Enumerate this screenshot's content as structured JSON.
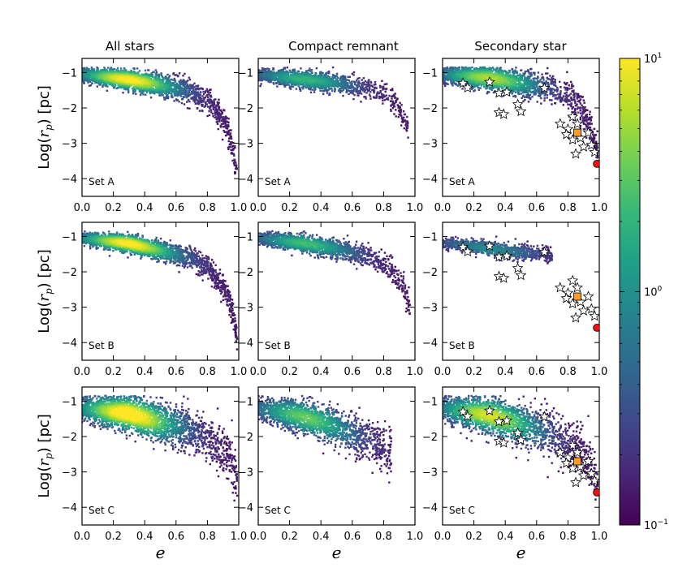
{
  "chart_data": {
    "type": "scatter",
    "layout": "3x3 grid",
    "column_titles": [
      "All stars",
      "Compact remnant",
      "Secondary star"
    ],
    "row_sets": [
      "Set A",
      "Set B",
      "Set C"
    ],
    "ylabel_prefix": "Log(",
    "ylabel_var": "r",
    "ylabel_sub": "p",
    "ylabel_suffix": ") [pc]",
    "xlabel": "e",
    "xlim": [
      0.0,
      1.0
    ],
    "ylim": [
      -4.5,
      -0.6
    ],
    "xticks": [
      0.0,
      0.2,
      0.4,
      0.6,
      0.8,
      1.0
    ],
    "xtick_labels": [
      "0.0",
      "0.2",
      "0.4",
      "0.6",
      "0.8",
      "1.0"
    ],
    "yticks": [
      -1,
      -2,
      -3,
      -4
    ],
    "ytick_labels": [
      "−1",
      "−2",
      "−3",
      "−4"
    ],
    "colorbar": {
      "scale": "log",
      "min": 0.1,
      "max": 10,
      "ticks": [
        {
          "base": "10",
          "exp": "1",
          "value": 10
        },
        {
          "base": "10",
          "exp": "0",
          "value": 1
        },
        {
          "base": "10",
          "exp": "−1",
          "value": 0.1
        }
      ],
      "colormap": [
        "#440154",
        "#482878",
        "#3e4989",
        "#31688e",
        "#26828e",
        "#1f9e89",
        "#35b779",
        "#6ece58",
        "#b5de2b",
        "#fde725"
      ]
    },
    "density_description": "2D histogram of simulated pericentre distance vs eccentricity, peak density near e=0.3, Log(rp)=-1.3",
    "panels": [
      {
        "row": 0,
        "col": 0,
        "set": "Set A",
        "sample": "All stars",
        "band": [
          [
            0.0,
            -1.05
          ],
          [
            0.3,
            -1.2
          ],
          [
            0.5,
            -1.35
          ],
          [
            0.7,
            -1.55
          ],
          [
            0.8,
            -1.8
          ],
          [
            0.9,
            -2.3
          ],
          [
            0.95,
            -2.9
          ],
          [
            0.99,
            -3.8
          ]
        ],
        "spread": 0.25,
        "n": 2600
      },
      {
        "row": 0,
        "col": 1,
        "set": "Set A",
        "sample": "Compact remnant",
        "band": [
          [
            0.0,
            -1.05
          ],
          [
            0.3,
            -1.2
          ],
          [
            0.5,
            -1.3
          ],
          [
            0.7,
            -1.45
          ],
          [
            0.8,
            -1.6
          ],
          [
            0.9,
            -2.0
          ],
          [
            0.96,
            -2.6
          ]
        ],
        "spread": 0.22,
        "n": 1600
      },
      {
        "row": 0,
        "col": 2,
        "set": "Set A",
        "sample": "Secondary star",
        "band": [
          [
            0.0,
            -1.05
          ],
          [
            0.3,
            -1.15
          ],
          [
            0.5,
            -1.3
          ],
          [
            0.7,
            -1.45
          ],
          [
            0.85,
            -1.8
          ],
          [
            0.95,
            -2.6
          ],
          [
            0.99,
            -3.3
          ]
        ],
        "spread": 0.3,
        "n": 2200
      },
      {
        "row": 1,
        "col": 0,
        "set": "Set B",
        "sample": "All stars",
        "band": [
          [
            0.0,
            -1.05
          ],
          [
            0.3,
            -1.2
          ],
          [
            0.5,
            -1.4
          ],
          [
            0.7,
            -1.6
          ],
          [
            0.8,
            -1.85
          ],
          [
            0.9,
            -2.4
          ],
          [
            0.96,
            -3.1
          ],
          [
            0.99,
            -3.9
          ]
        ],
        "spread": 0.22,
        "n": 2600
      },
      {
        "row": 1,
        "col": 1,
        "set": "Set B",
        "sample": "Compact remnant",
        "band": [
          [
            0.0,
            -1.05
          ],
          [
            0.3,
            -1.2
          ],
          [
            0.5,
            -1.35
          ],
          [
            0.7,
            -1.55
          ],
          [
            0.85,
            -1.9
          ],
          [
            0.93,
            -2.5
          ],
          [
            0.97,
            -3.0
          ]
        ],
        "spread": 0.22,
        "n": 1700
      },
      {
        "row": 1,
        "col": 2,
        "set": "Set B",
        "sample": "Secondary star",
        "band": [
          [
            0.05,
            -1.2
          ],
          [
            0.3,
            -1.35
          ],
          [
            0.5,
            -1.45
          ],
          [
            0.65,
            -1.5
          ],
          [
            0.7,
            -1.6
          ]
        ],
        "spread": 0.18,
        "n": 1100
      },
      {
        "row": 2,
        "col": 0,
        "set": "Set C",
        "sample": "All stars",
        "band": [
          [
            0.0,
            -1.2
          ],
          [
            0.3,
            -1.35
          ],
          [
            0.5,
            -1.6
          ],
          [
            0.7,
            -1.8
          ],
          [
            0.85,
            -2.2
          ],
          [
            0.95,
            -2.7
          ],
          [
            0.99,
            -3.3
          ]
        ],
        "spread": 0.45,
        "n": 2800
      },
      {
        "row": 2,
        "col": 1,
        "set": "Set C",
        "sample": "Compact remnant",
        "band": [
          [
            0.0,
            -1.2
          ],
          [
            0.25,
            -1.4
          ],
          [
            0.45,
            -1.65
          ],
          [
            0.6,
            -1.9
          ],
          [
            0.75,
            -2.2
          ],
          [
            0.85,
            -2.6
          ]
        ],
        "spread": 0.42,
        "n": 1900
      },
      {
        "row": 2,
        "col": 2,
        "set": "Set C",
        "sample": "Secondary star",
        "band": [
          [
            0.0,
            -1.2
          ],
          [
            0.3,
            -1.4
          ],
          [
            0.5,
            -1.65
          ],
          [
            0.7,
            -1.95
          ],
          [
            0.85,
            -2.3
          ],
          [
            0.95,
            -2.8
          ],
          [
            0.99,
            -3.3
          ]
        ],
        "spread": 0.45,
        "n": 2400
      }
    ],
    "observed_stars": [
      {
        "e": 0.13,
        "y": -1.3
      },
      {
        "e": 0.16,
        "y": -1.43
      },
      {
        "e": 0.3,
        "y": -1.27
      },
      {
        "e": 0.36,
        "y": -1.58
      },
      {
        "e": 0.41,
        "y": -1.55
      },
      {
        "e": 0.48,
        "y": -1.9
      },
      {
        "e": 0.5,
        "y": -2.1
      },
      {
        "e": 0.36,
        "y": -2.13
      },
      {
        "e": 0.39,
        "y": -2.18
      },
      {
        "e": 0.65,
        "y": -1.44
      },
      {
        "e": 0.75,
        "y": -2.45
      },
      {
        "e": 0.8,
        "y": -2.6
      },
      {
        "e": 0.83,
        "y": -2.25
      },
      {
        "e": 0.86,
        "y": -2.45
      },
      {
        "e": 0.83,
        "y": -2.9
      },
      {
        "e": 0.88,
        "y": -2.85
      },
      {
        "e": 0.9,
        "y": -3.1
      },
      {
        "e": 0.93,
        "y": -2.7
      },
      {
        "e": 0.95,
        "y": -3.05
      },
      {
        "e": 0.85,
        "y": -3.3
      },
      {
        "e": 0.97,
        "y": -3.25
      },
      {
        "e": 0.79,
        "y": -2.75
      }
    ],
    "orange_square": {
      "e": 0.86,
      "y": -2.7
    },
    "red_circle": {
      "e": 0.985,
      "y": -3.58
    }
  },
  "colors": {
    "star_fill": "#ffffff",
    "star_stroke": "#000000",
    "square_fill": "#ff9f1c",
    "circle_fill": "#ee1111"
  }
}
